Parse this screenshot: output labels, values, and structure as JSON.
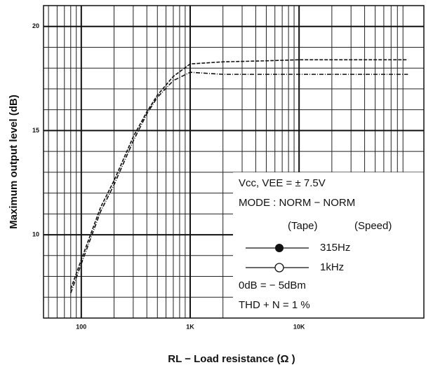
{
  "chart_data": {
    "type": "line",
    "xlabel": "RL − Load resistance   (Ω )",
    "ylabel": "Maximum output level   (dB)",
    "x": [
      80,
      100,
      150,
      200,
      300,
      400,
      500,
      700,
      1000,
      2000,
      5000,
      10000,
      20000,
      50000,
      100000
    ],
    "series": [
      {
        "name": "315Hz",
        "color": "#111",
        "marker": "filled",
        "values": [
          7.4,
          8.8,
          11.3,
          12.6,
          14.7,
          15.9,
          16.7,
          17.6,
          18.2,
          18.3,
          18.35,
          18.4,
          18.4,
          18.4,
          18.4
        ]
      },
      {
        "name": "1kHz",
        "color": "#111",
        "marker": "open",
        "values": [
          7.2,
          8.6,
          11.1,
          12.4,
          14.5,
          15.8,
          16.6,
          17.4,
          17.8,
          17.7,
          17.7,
          17.7,
          17.7,
          17.7,
          17.7
        ]
      }
    ],
    "log_x": true,
    "xlim": [
      45,
      140000
    ],
    "ylim": [
      6,
      21
    ],
    "xticks": [
      100,
      {
        "value": 1000,
        "label": "1K"
      },
      {
        "value": 10000,
        "label": "10K"
      }
    ],
    "yticks": [
      10,
      15,
      20
    ],
    "x_minor_ticks": [
      50,
      60,
      70,
      80,
      90,
      200,
      300,
      400,
      500,
      600,
      700,
      800,
      900,
      2000,
      3000,
      4000,
      5000,
      6000,
      7000,
      8000,
      9000,
      20000,
      30000,
      40000,
      50000,
      60000,
      70000,
      80000,
      90000
    ],
    "y_minor_ticks": [
      7,
      8,
      9,
      11,
      12,
      13,
      14,
      16,
      17,
      18,
      19,
      21
    ],
    "grid": true,
    "annotations": [
      "Vcc, VEE = ± 7.5V",
      "MODE : NORM − NORM",
      "(Tape)",
      "(Speed)",
      "0dB = − 5dBm",
      "THD + N = 1 %"
    ]
  }
}
